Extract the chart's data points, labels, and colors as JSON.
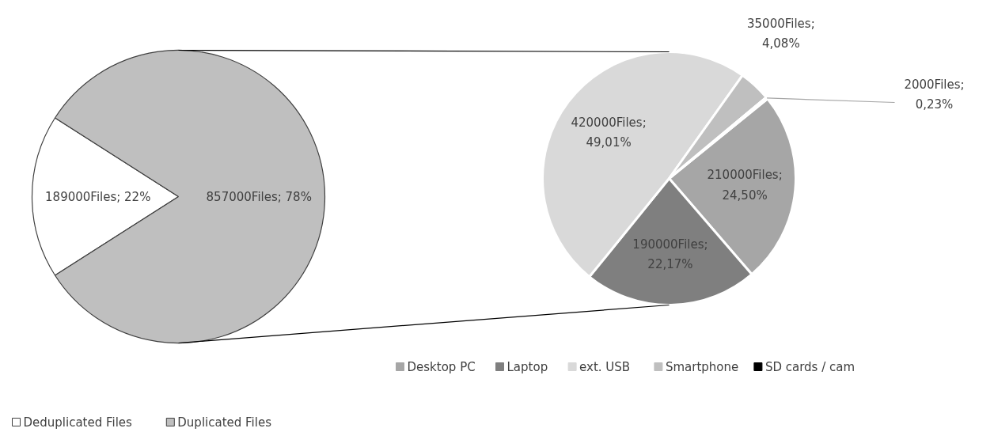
{
  "chart_data": [
    {
      "type": "pie",
      "categories": [
        "Deduplicated Files",
        "Duplicated Files"
      ],
      "values": [
        189000,
        857000
      ],
      "colors": [
        "#ffffff",
        "#bfbfbf"
      ],
      "value_labels": [
        "189000Files; 22%",
        "857000Files; 78%"
      ],
      "legend": "bottom left"
    },
    {
      "type": "pie",
      "categories": [
        "Desktop PC",
        "Laptop",
        "ext. USB",
        "Smartphone",
        "SD cards / cam"
      ],
      "values": [
        210000,
        190000,
        420000,
        35000,
        2000
      ],
      "colors": [
        "#a6a6a6",
        "#7f7f7f",
        "#d9d9d9",
        "#bfbfbf",
        "#000000"
      ],
      "value_labels": [
        "210000Files;\n24,50%",
        "190000Files;\n22,17%",
        "420000Files;\n49,01%",
        "35000Files;\n4,08%",
        "2000Files;\n0,23%"
      ],
      "legend": "bottom"
    }
  ]
}
